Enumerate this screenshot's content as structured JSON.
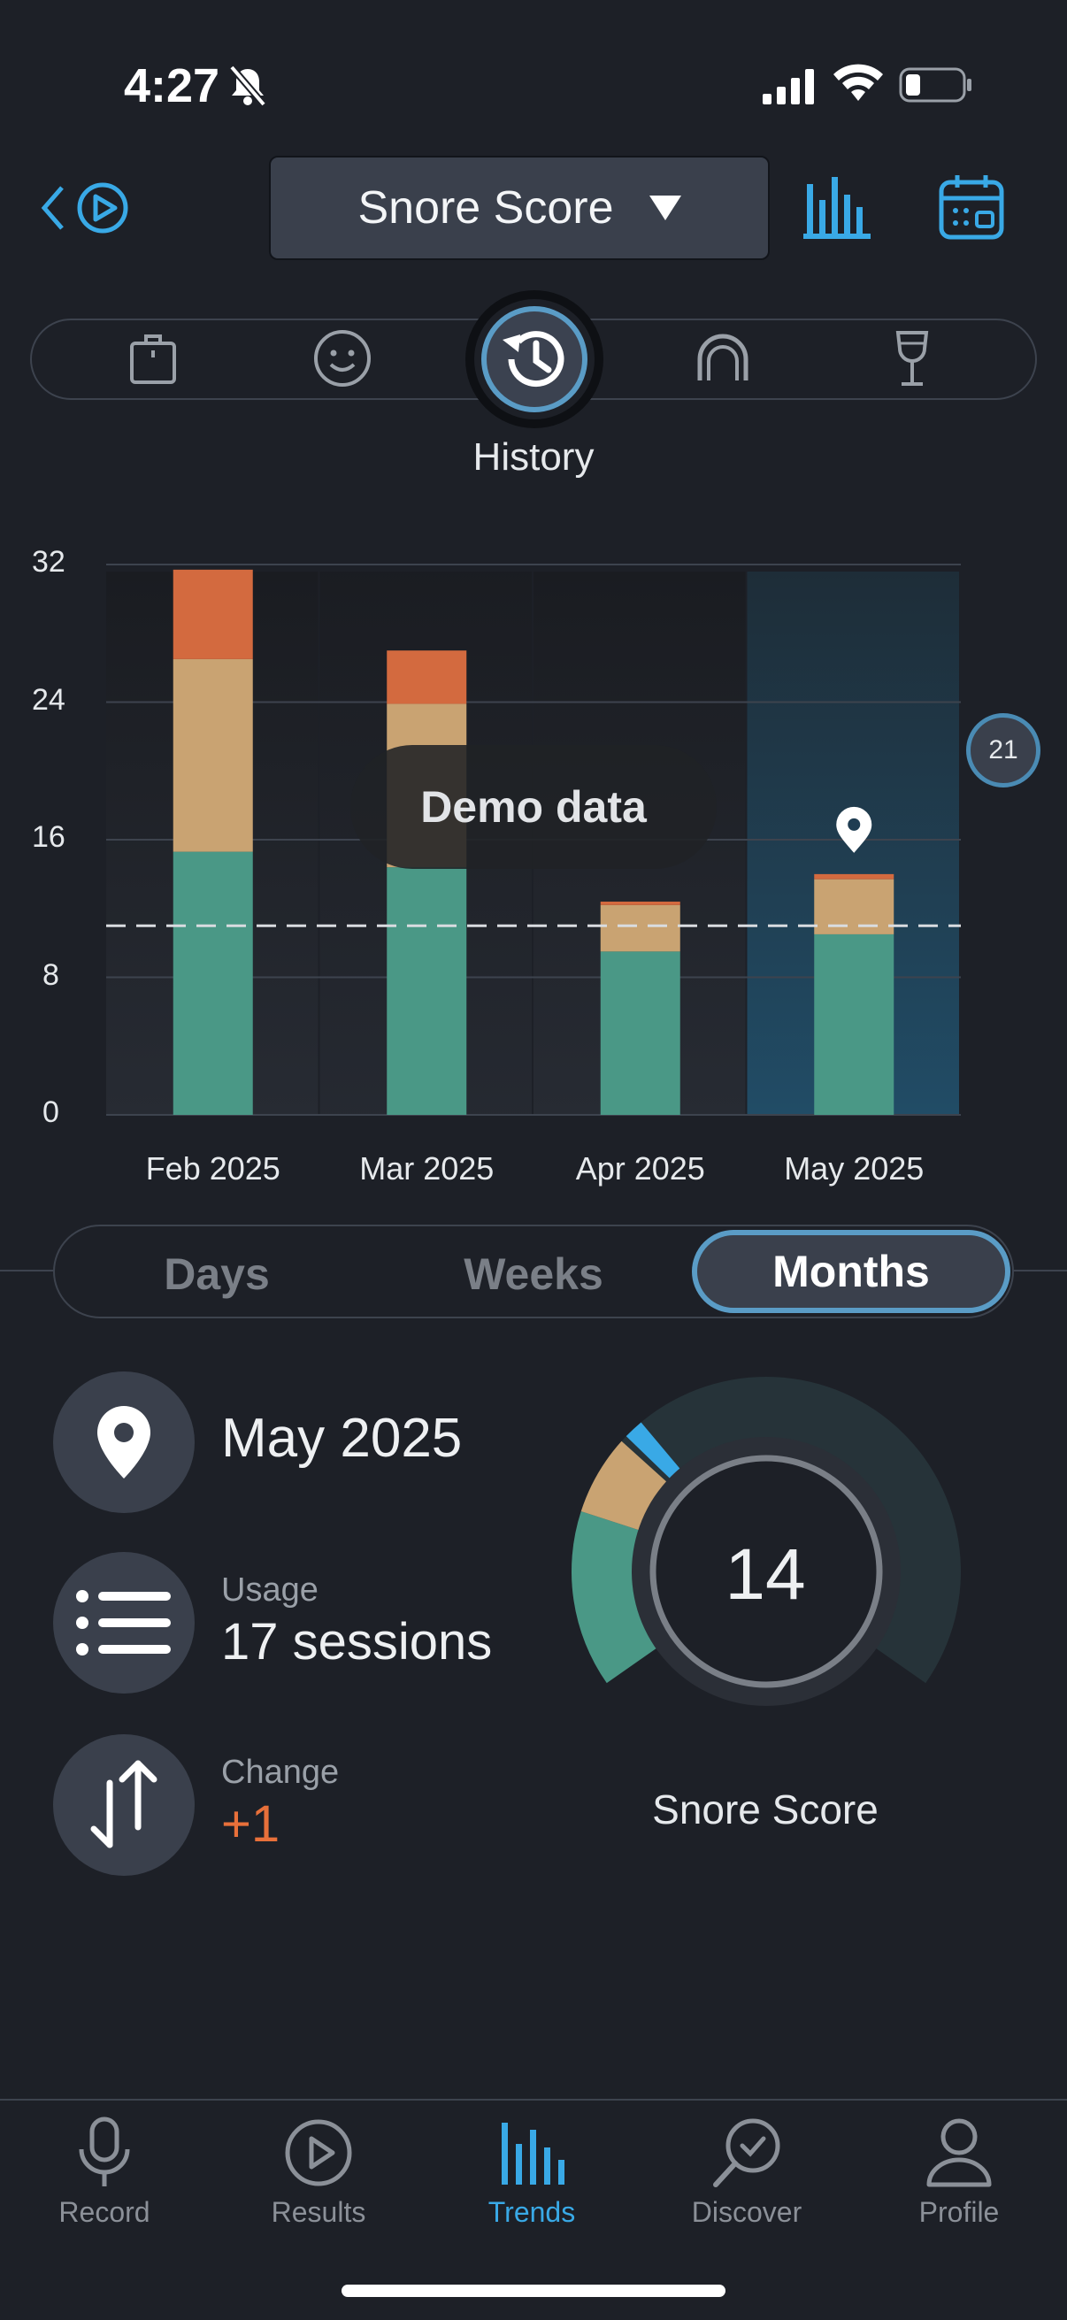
{
  "status": {
    "time": "4:27"
  },
  "header": {
    "metric_label": "Snore Score"
  },
  "factors": {
    "active_label": "History"
  },
  "chart_data": {
    "type": "bar",
    "stacked": true,
    "categories": [
      "Feb 2025",
      "Mar 2025",
      "Apr 2025",
      "May 2025"
    ],
    "series": [
      {
        "color": "#4a9886",
        "values": [
          15.3,
          14.4,
          9.5,
          10.5
        ]
      },
      {
        "color": "#c9a372",
        "values": [
          11.2,
          9.5,
          2.7,
          3.2
        ]
      },
      {
        "color": "#d36a3f",
        "values": [
          5.2,
          3.1,
          0.2,
          0.3
        ]
      }
    ],
    "y_ticks": [
      0,
      8,
      16,
      24,
      32
    ],
    "ylim": [
      0,
      32
    ],
    "goal_line": 11,
    "goal_badge": "21",
    "selected_index": 3,
    "overlay_text": "Demo data",
    "grid": true
  },
  "range": {
    "options": [
      "Days",
      "Weeks",
      "Months"
    ],
    "active": "Months"
  },
  "summary": {
    "period": "May 2025",
    "usage_label": "Usage",
    "usage_value": "17 sessions",
    "change_label": "Change",
    "change_value": "+1",
    "score": "14",
    "score_label": "Snore Score"
  },
  "tabs": [
    {
      "label": "Record",
      "icon": "microphone-icon"
    },
    {
      "label": "Results",
      "icon": "play-circle-icon"
    },
    {
      "label": "Trends",
      "icon": "bar-chart-icon"
    },
    {
      "label": "Discover",
      "icon": "discover-icon"
    },
    {
      "label": "Profile",
      "icon": "person-icon"
    }
  ],
  "colors": {
    "accent": "#39a9e6",
    "bg": "#1d2027",
    "panel": "#3a404c",
    "orange": "#e8703a"
  }
}
